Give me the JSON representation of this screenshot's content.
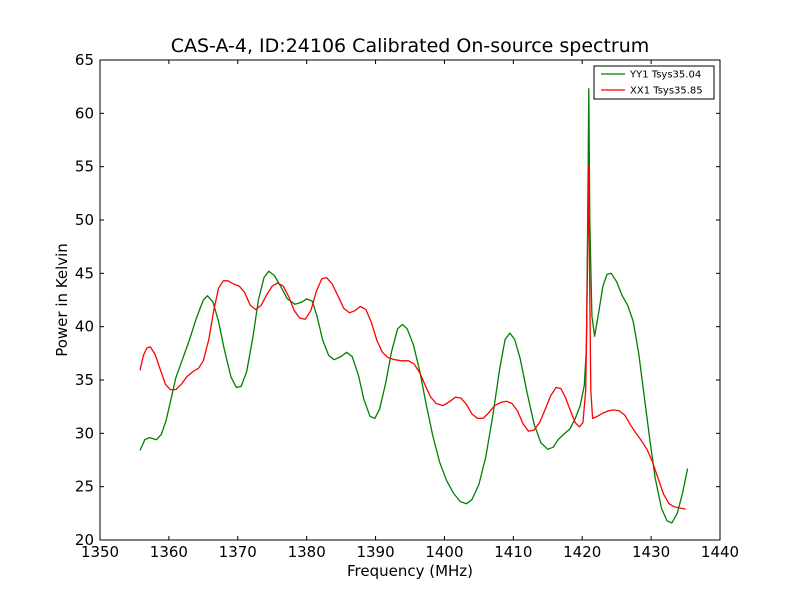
{
  "chart_data": {
    "type": "line",
    "title": "CAS-A-4, ID:24106 Calibrated On-source spectrum",
    "xlabel": "Frequency (MHz)",
    "ylabel": "Power in Kelvin",
    "xlim": [
      1350,
      1440
    ],
    "ylim": [
      20,
      65
    ],
    "xticks": [
      1350,
      1360,
      1370,
      1380,
      1390,
      1400,
      1410,
      1420,
      1430,
      1440
    ],
    "yticks": [
      20,
      25,
      30,
      35,
      40,
      45,
      50,
      55,
      60,
      65
    ],
    "grid": false,
    "legend_position": "top-right",
    "series": [
      {
        "name": "YY1 Tsys35.04",
        "color": "#008000",
        "points": [
          [
            1355.8,
            28.4
          ],
          [
            1356.5,
            29.4
          ],
          [
            1357.2,
            29.6
          ],
          [
            1358.2,
            29.4
          ],
          [
            1358.9,
            29.9
          ],
          [
            1359.6,
            31.2
          ],
          [
            1360.3,
            33.2
          ],
          [
            1361.0,
            35.2
          ],
          [
            1362.0,
            37.0
          ],
          [
            1363.0,
            38.8
          ],
          [
            1364.0,
            40.8
          ],
          [
            1365.0,
            42.5
          ],
          [
            1365.6,
            42.9
          ],
          [
            1366.4,
            42.3
          ],
          [
            1367.2,
            40.5
          ],
          [
            1368.0,
            38.0
          ],
          [
            1369.0,
            35.3
          ],
          [
            1369.8,
            34.3
          ],
          [
            1370.5,
            34.4
          ],
          [
            1371.3,
            35.8
          ],
          [
            1372.2,
            39.0
          ],
          [
            1373.0,
            42.5
          ],
          [
            1373.8,
            44.6
          ],
          [
            1374.5,
            45.2
          ],
          [
            1375.3,
            44.8
          ],
          [
            1376.2,
            43.8
          ],
          [
            1377.2,
            42.6
          ],
          [
            1378.3,
            42.1
          ],
          [
            1379.3,
            42.3
          ],
          [
            1380.0,
            42.6
          ],
          [
            1380.8,
            42.4
          ],
          [
            1381.5,
            41.0
          ],
          [
            1382.3,
            38.8
          ],
          [
            1383.2,
            37.3
          ],
          [
            1384.0,
            36.9
          ],
          [
            1385.0,
            37.2
          ],
          [
            1385.8,
            37.6
          ],
          [
            1386.6,
            37.2
          ],
          [
            1387.5,
            35.5
          ],
          [
            1388.3,
            33.2
          ],
          [
            1389.2,
            31.6
          ],
          [
            1389.9,
            31.4
          ],
          [
            1390.6,
            32.3
          ],
          [
            1391.5,
            34.8
          ],
          [
            1392.3,
            37.6
          ],
          [
            1393.2,
            39.8
          ],
          [
            1393.9,
            40.2
          ],
          [
            1394.6,
            39.8
          ],
          [
            1395.5,
            38.3
          ],
          [
            1396.4,
            35.9
          ],
          [
            1397.3,
            32.9
          ],
          [
            1398.3,
            29.8
          ],
          [
            1399.3,
            27.3
          ],
          [
            1400.3,
            25.6
          ],
          [
            1401.3,
            24.4
          ],
          [
            1402.3,
            23.6
          ],
          [
            1403.2,
            23.4
          ],
          [
            1404.0,
            23.8
          ],
          [
            1405.0,
            25.2
          ],
          [
            1406.0,
            27.8
          ],
          [
            1407.0,
            31.6
          ],
          [
            1408.0,
            36.0
          ],
          [
            1408.8,
            38.8
          ],
          [
            1409.5,
            39.4
          ],
          [
            1410.2,
            38.8
          ],
          [
            1411.0,
            37.0
          ],
          [
            1412.0,
            33.8
          ],
          [
            1413.0,
            30.9
          ],
          [
            1414.0,
            29.1
          ],
          [
            1415.0,
            28.5
          ],
          [
            1415.8,
            28.7
          ],
          [
            1416.5,
            29.4
          ],
          [
            1417.3,
            29.9
          ],
          [
            1418.2,
            30.4
          ],
          [
            1419.0,
            31.4
          ],
          [
            1419.7,
            32.6
          ],
          [
            1420.3,
            34.5
          ],
          [
            1420.6,
            38.0
          ],
          [
            1420.8,
            50.0
          ],
          [
            1420.95,
            62.3
          ],
          [
            1421.1,
            50.0
          ],
          [
            1421.4,
            41.0
          ],
          [
            1421.8,
            39.1
          ],
          [
            1422.3,
            41.0
          ],
          [
            1423.0,
            43.8
          ],
          [
            1423.6,
            44.9
          ],
          [
            1424.2,
            45.0
          ],
          [
            1425.0,
            44.2
          ],
          [
            1425.8,
            42.9
          ],
          [
            1426.6,
            42.0
          ],
          [
            1427.4,
            40.5
          ],
          [
            1428.2,
            37.5
          ],
          [
            1429.0,
            33.5
          ],
          [
            1429.8,
            29.5
          ],
          [
            1430.6,
            25.8
          ],
          [
            1431.5,
            23.0
          ],
          [
            1432.3,
            21.8
          ],
          [
            1433.0,
            21.6
          ],
          [
            1433.8,
            22.5
          ],
          [
            1434.6,
            24.5
          ],
          [
            1435.3,
            26.7
          ]
        ]
      },
      {
        "name": "XX1 Tsys35.85",
        "color": "#ff0000",
        "points": [
          [
            1355.8,
            35.9
          ],
          [
            1356.3,
            37.3
          ],
          [
            1356.8,
            38.0
          ],
          [
            1357.3,
            38.1
          ],
          [
            1358.0,
            37.4
          ],
          [
            1358.8,
            35.9
          ],
          [
            1359.5,
            34.6
          ],
          [
            1360.2,
            34.1
          ],
          [
            1361.0,
            34.1
          ],
          [
            1361.8,
            34.6
          ],
          [
            1362.6,
            35.3
          ],
          [
            1363.5,
            35.8
          ],
          [
            1364.3,
            36.1
          ],
          [
            1365.0,
            36.8
          ],
          [
            1365.8,
            38.8
          ],
          [
            1366.5,
            41.5
          ],
          [
            1367.2,
            43.6
          ],
          [
            1367.9,
            44.3
          ],
          [
            1368.6,
            44.3
          ],
          [
            1369.4,
            44.0
          ],
          [
            1370.2,
            43.8
          ],
          [
            1371.0,
            43.2
          ],
          [
            1371.8,
            42.0
          ],
          [
            1372.6,
            41.6
          ],
          [
            1373.4,
            42.0
          ],
          [
            1374.2,
            43.0
          ],
          [
            1375.0,
            43.8
          ],
          [
            1375.8,
            44.1
          ],
          [
            1376.6,
            43.8
          ],
          [
            1377.4,
            42.8
          ],
          [
            1378.2,
            41.5
          ],
          [
            1379.0,
            40.8
          ],
          [
            1379.8,
            40.7
          ],
          [
            1380.6,
            41.5
          ],
          [
            1381.4,
            43.3
          ],
          [
            1382.2,
            44.5
          ],
          [
            1382.9,
            44.6
          ],
          [
            1383.7,
            44.0
          ],
          [
            1384.6,
            42.8
          ],
          [
            1385.4,
            41.7
          ],
          [
            1386.2,
            41.3
          ],
          [
            1387.0,
            41.5
          ],
          [
            1387.8,
            41.9
          ],
          [
            1388.6,
            41.6
          ],
          [
            1389.4,
            40.4
          ],
          [
            1390.2,
            38.7
          ],
          [
            1391.0,
            37.6
          ],
          [
            1391.8,
            37.1
          ],
          [
            1392.8,
            36.9
          ],
          [
            1393.8,
            36.8
          ],
          [
            1394.8,
            36.8
          ],
          [
            1395.6,
            36.5
          ],
          [
            1396.4,
            35.7
          ],
          [
            1397.2,
            34.5
          ],
          [
            1398.0,
            33.4
          ],
          [
            1398.8,
            32.8
          ],
          [
            1399.8,
            32.6
          ],
          [
            1400.8,
            33.0
          ],
          [
            1401.6,
            33.4
          ],
          [
            1402.4,
            33.3
          ],
          [
            1403.2,
            32.7
          ],
          [
            1404.0,
            31.8
          ],
          [
            1404.8,
            31.4
          ],
          [
            1405.6,
            31.4
          ],
          [
            1406.4,
            31.9
          ],
          [
            1407.3,
            32.6
          ],
          [
            1408.2,
            32.9
          ],
          [
            1409.0,
            33.0
          ],
          [
            1409.8,
            32.8
          ],
          [
            1410.6,
            32.1
          ],
          [
            1411.4,
            30.9
          ],
          [
            1412.2,
            30.2
          ],
          [
            1413.0,
            30.3
          ],
          [
            1413.8,
            31.0
          ],
          [
            1414.6,
            32.2
          ],
          [
            1415.4,
            33.5
          ],
          [
            1416.2,
            34.3
          ],
          [
            1416.9,
            34.2
          ],
          [
            1417.6,
            33.3
          ],
          [
            1418.3,
            32.1
          ],
          [
            1419.0,
            31.0
          ],
          [
            1419.6,
            30.6
          ],
          [
            1420.1,
            31.0
          ],
          [
            1420.5,
            34.0
          ],
          [
            1420.75,
            45.0
          ],
          [
            1420.9,
            55.0
          ],
          [
            1421.05,
            46.0
          ],
          [
            1421.25,
            34.0
          ],
          [
            1421.5,
            31.4
          ],
          [
            1422.2,
            31.6
          ],
          [
            1423.0,
            31.9
          ],
          [
            1423.8,
            32.1
          ],
          [
            1424.6,
            32.2
          ],
          [
            1425.4,
            32.1
          ],
          [
            1426.2,
            31.7
          ],
          [
            1427.0,
            30.8
          ],
          [
            1427.8,
            30.0
          ],
          [
            1428.6,
            29.3
          ],
          [
            1429.4,
            28.5
          ],
          [
            1430.2,
            27.3
          ],
          [
            1431.0,
            25.8
          ],
          [
            1431.8,
            24.3
          ],
          [
            1432.6,
            23.4
          ],
          [
            1433.4,
            23.1
          ],
          [
            1434.2,
            23.0
          ],
          [
            1435.0,
            22.9
          ]
        ]
      }
    ]
  }
}
